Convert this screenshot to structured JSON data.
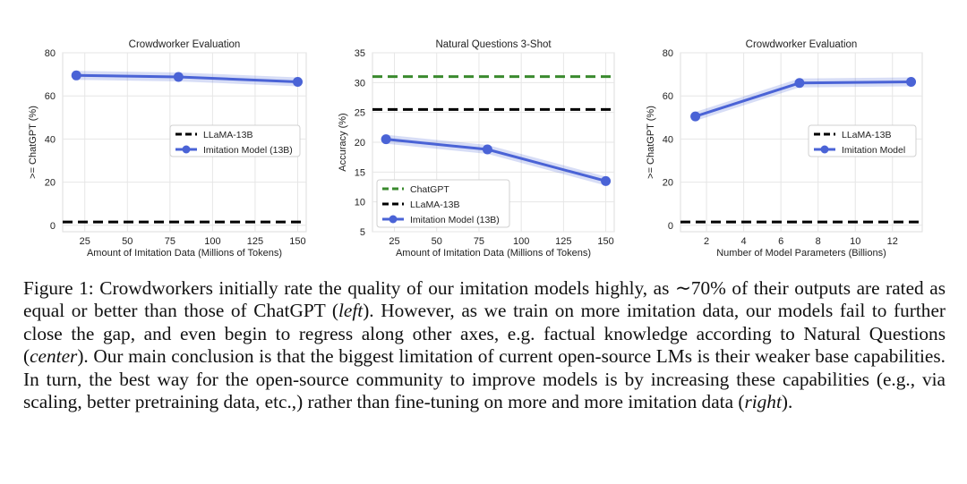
{
  "chart_data": [
    {
      "type": "line",
      "title": "Crowdworker Evaluation",
      "xlabel": "Amount of Imitation Data (Millions of Tokens)",
      "ylabel": ">= ChatGPT (%)",
      "xlim": [
        12,
        155
      ],
      "ylim": [
        -3,
        80
      ],
      "xticks": [
        25,
        50,
        75,
        100,
        125,
        150
      ],
      "yticks": [
        0,
        20,
        40,
        60,
        80
      ],
      "grid": true,
      "legend": "center-right",
      "series": [
        {
          "name": "LLaMA-13B",
          "style": "dashed",
          "color": "#000000",
          "x": [
            12,
            155
          ],
          "y": [
            1.5,
            1.5
          ]
        },
        {
          "name": "Imitation Model (13B)",
          "style": "solid-marker",
          "color": "#4a63d6",
          "x": [
            20,
            80,
            150
          ],
          "y": [
            69.5,
            68.8,
            66.5
          ]
        }
      ]
    },
    {
      "type": "line",
      "title": "Natural Questions 3-Shot",
      "xlabel": "Amount of Imitation Data (Millions of Tokens)",
      "ylabel": "Accuracy (%)",
      "xlim": [
        12,
        155
      ],
      "ylim": [
        5,
        35
      ],
      "xticks": [
        25,
        50,
        75,
        100,
        125,
        150
      ],
      "yticks": [
        5,
        10,
        15,
        20,
        25,
        30,
        35
      ],
      "grid": true,
      "legend": "bottom-left",
      "series": [
        {
          "name": "ChatGPT",
          "style": "dashed",
          "color": "#3a8a2e",
          "x": [
            12,
            155
          ],
          "y": [
            31,
            31
          ]
        },
        {
          "name": "LLaMA-13B",
          "style": "dashed",
          "color": "#000000",
          "x": [
            12,
            155
          ],
          "y": [
            25.5,
            25.5
          ]
        },
        {
          "name": "Imitation Model (13B)",
          "style": "solid-marker",
          "color": "#4a63d6",
          "x": [
            20,
            80,
            150
          ],
          "y": [
            20.5,
            18.8,
            13.5
          ]
        }
      ]
    },
    {
      "type": "line",
      "title": "Crowdworker Evaluation",
      "xlabel": "Number of Model Parameters (Billions)",
      "ylabel": ">= ChatGPT (%)",
      "xlim": [
        0.6,
        13.6
      ],
      "ylim": [
        -3,
        80
      ],
      "xticks": [
        2,
        4,
        6,
        8,
        10,
        12
      ],
      "yticks": [
        0,
        20,
        40,
        60,
        80
      ],
      "grid": true,
      "legend": "center-right",
      "series": [
        {
          "name": "LLaMA-13B",
          "style": "dashed",
          "color": "#000000",
          "x": [
            0.6,
            13.6
          ],
          "y": [
            1.5,
            1.5
          ]
        },
        {
          "name": "Imitation Model",
          "style": "solid-marker",
          "color": "#4a63d6",
          "x": [
            1.4,
            7,
            13
          ],
          "y": [
            50.5,
            66,
            66.5
          ]
        }
      ]
    }
  ],
  "caption": {
    "t1": "Figure 1: Crowdworkers initially rate the quality of our imitation models highly, as ∼70% of their outputs are rated as equal or better than those of ChatGPT (",
    "i1": "left",
    "t2": ").  However, as we train on more imitation data, our models fail to further close the gap, and even begin to regress along other axes, e.g. factual knowledge according to Natural Questions (",
    "i2": "center",
    "t3": "). Our main conclusion is that the biggest limitation of current open-source LMs is their weaker base capabilities. In turn, the best way for the open-source community to improve models is by increasing these capabilities (e.g., via scaling, better pretraining data, etc.,) rather than fine-tuning on more and more imitation data (",
    "i3": "right",
    "t4": ")."
  }
}
